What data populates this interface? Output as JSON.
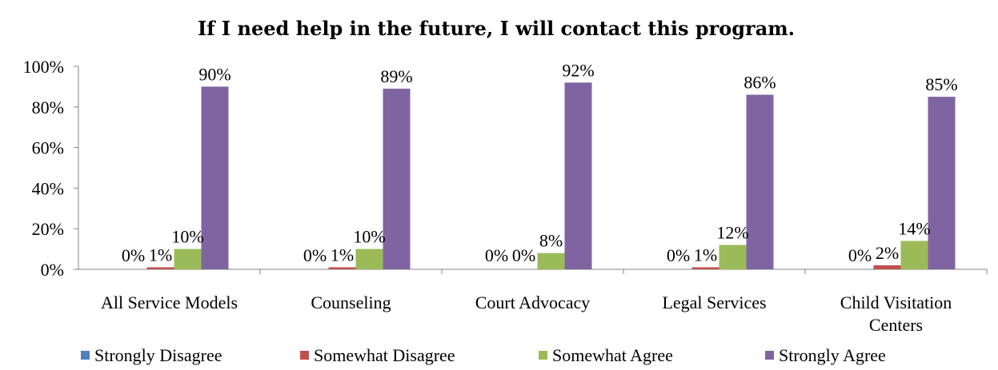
{
  "chart_data": {
    "type": "bar",
    "title": "If I need help in the future, I will contact this program.",
    "xlabel": "",
    "ylabel": "",
    "ylim": [
      0,
      100
    ],
    "yticks": [
      "0%",
      "20%",
      "40%",
      "60%",
      "80%",
      "100%"
    ],
    "categories": [
      [
        "All Service Models"
      ],
      [
        "Counseling"
      ],
      [
        "Court Advocacy"
      ],
      [
        "Legal Services"
      ],
      [
        "Child Visitation",
        "Centers"
      ]
    ],
    "series": [
      {
        "name": "Strongly Disagree",
        "color": "#4F81BD",
        "values": [
          0,
          0,
          0,
          0,
          0
        ],
        "labels": [
          "0%",
          "0%",
          "0%",
          "0%",
          "0%"
        ]
      },
      {
        "name": "Somewhat Disagree",
        "color": "#C0504D",
        "values": [
          1,
          1,
          0,
          1,
          2
        ],
        "labels": [
          "1%",
          "1%",
          "0%",
          "1%",
          "2%"
        ]
      },
      {
        "name": "Somewhat Agree",
        "color": "#9BBB59",
        "values": [
          10,
          10,
          8,
          12,
          14
        ],
        "labels": [
          "10%",
          "10%",
          "8%",
          "12%",
          "14%"
        ]
      },
      {
        "name": "Strongly Agree",
        "color": "#8064A2",
        "values": [
          90,
          89,
          92,
          86,
          85
        ],
        "labels": [
          "90%",
          "89%",
          "92%",
          "86%",
          "85%"
        ]
      }
    ],
    "grid": false,
    "legend_position": "bottom"
  }
}
